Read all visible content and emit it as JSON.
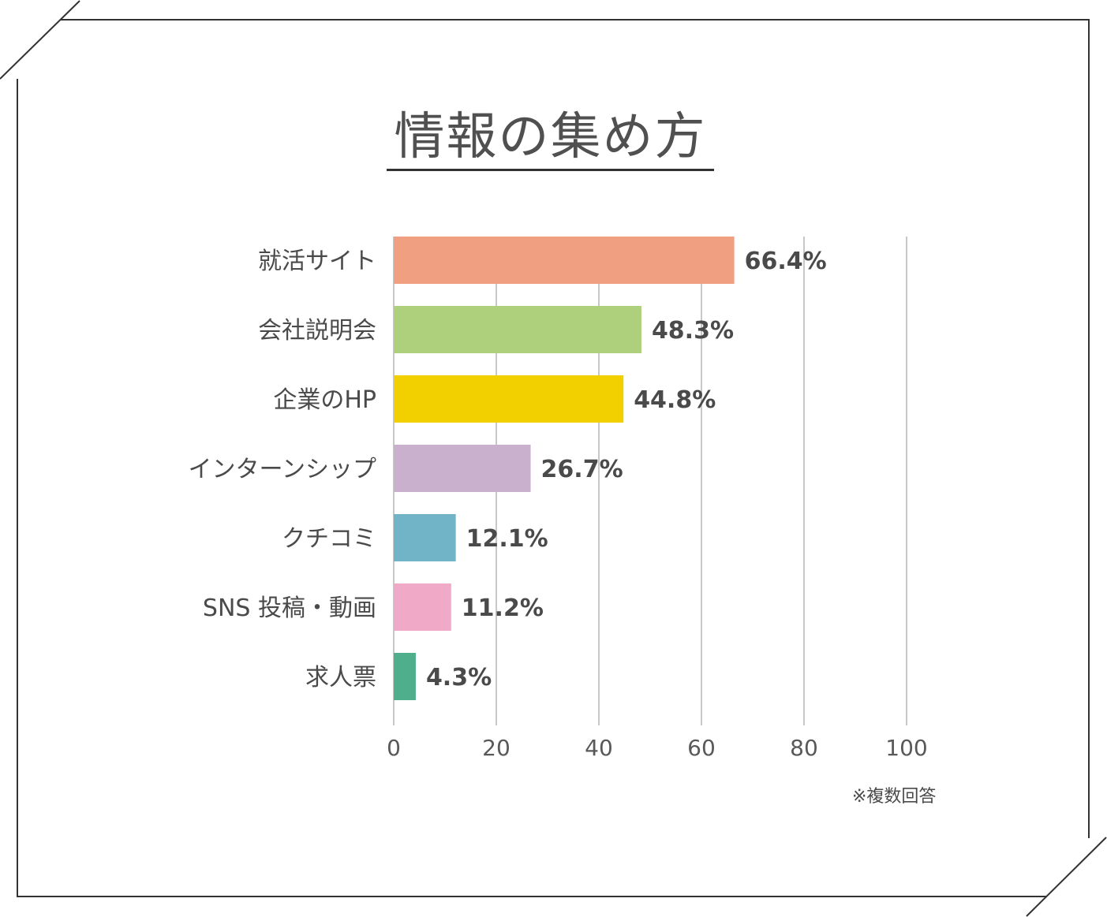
{
  "title": "情報の集め方",
  "note": "※複数回答",
  "chart_data": {
    "type": "bar",
    "orientation": "horizontal",
    "title": "情報の集め方",
    "categories": [
      "就活サイト",
      "会社説明会",
      "企業のHP",
      "インターンシップ",
      "クチコミ",
      "SNS 投稿・動画",
      "求人票"
    ],
    "values": [
      66.4,
      48.3,
      44.8,
      26.7,
      12.1,
      11.2,
      4.3
    ],
    "value_labels": [
      "66.4%",
      "48.3%",
      "44.8%",
      "26.7%",
      "12.1%",
      "11.2%",
      "4.3%"
    ],
    "colors": [
      "#f09f80",
      "#aed07d",
      "#f2d000",
      "#c9b1cd",
      "#72b4c7",
      "#f0aac8",
      "#4fae8c"
    ],
    "xlim": [
      0,
      100
    ],
    "xticks": [
      "0",
      "20",
      "40",
      "60",
      "80",
      "100"
    ],
    "grid": true,
    "xlabel": "",
    "ylabel": ""
  }
}
